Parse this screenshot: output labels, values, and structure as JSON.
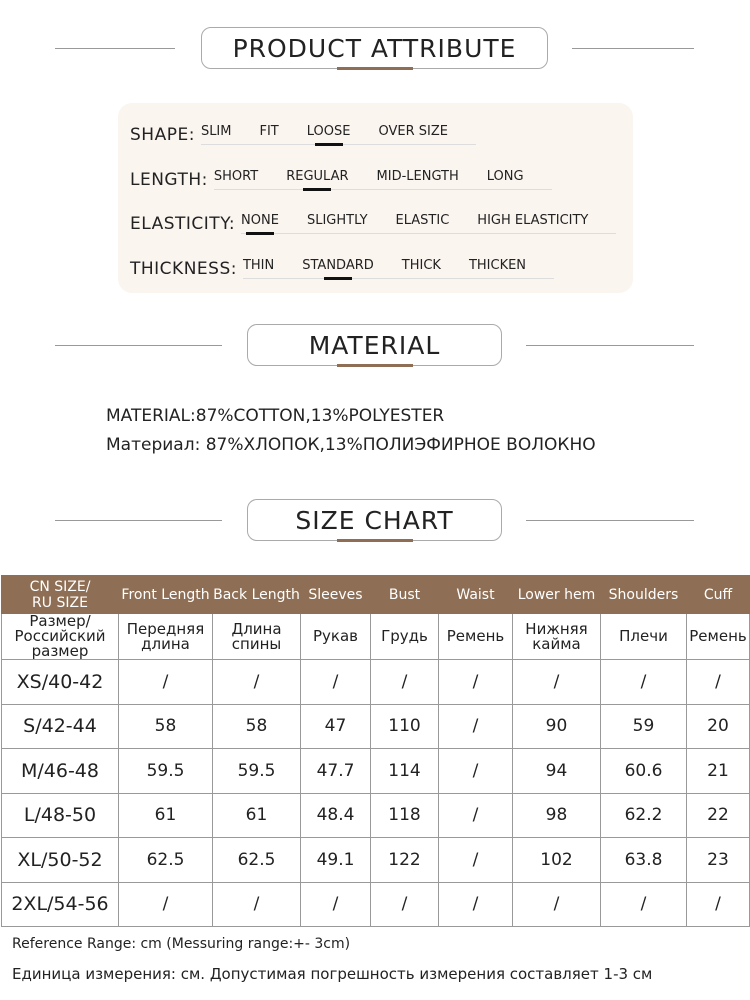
{
  "sections": {
    "attribute": "PRODUCT ATTRIBUTE",
    "material": "MATERIAL",
    "size_chart": "SIZE CHART"
  },
  "accent_color": "#8e6f55",
  "attributes": [
    {
      "label": "SHAPE:",
      "options": [
        "SLIM",
        "FIT",
        "LOOSE",
        "OVER SIZE"
      ],
      "selected": "LOOSE"
    },
    {
      "label": "LENGTH:",
      "options": [
        "SHORT",
        "REGULAR",
        "MID-LENGTH",
        "LONG"
      ],
      "selected": "REGULAR"
    },
    {
      "label": "ELASTICITY:",
      "options": [
        "NONE",
        "SLIGHTLY",
        "ELASTIC",
        "HIGH ELASTICITY"
      ],
      "selected": "NONE"
    },
    {
      "label": "THICKNESS:",
      "options": [
        "THIN",
        "STANDARD",
        "THICK",
        "THICKEN"
      ],
      "selected": "STANDARD"
    }
  ],
  "material": {
    "en": "MATERIAL:87%COTTON,13%POLYESTER",
    "ru": "Материал: 87%ХЛОПОК,13%ПОЛИЭФИРНОЕ ВОЛОКНО"
  },
  "table": {
    "headers_en": [
      "CN SIZE/\nRU SIZE",
      "Front Length",
      "Back Length",
      "Sleeves",
      "Bust",
      "Waist",
      "Lower hem",
      "Shoulders",
      "Cuff"
    ],
    "headers_ru": [
      "Размер/\nРоссийский\nразмер",
      "Передняя\nдлина",
      "Длина\nспины",
      "Рукав",
      "Грудь",
      "Ремень",
      "Нижняя\nкайма",
      "Плечи",
      "Ремень"
    ],
    "rows": [
      [
        "XS/40-42",
        "/",
        "/",
        "/",
        "/",
        "/",
        "/",
        "/",
        "/"
      ],
      [
        "S/42-44",
        "58",
        "58",
        "47",
        "110",
        "/",
        "90",
        "59",
        "20"
      ],
      [
        "M/46-48",
        "59.5",
        "59.5",
        "47.7",
        "114",
        "/",
        "94",
        "60.6",
        "21"
      ],
      [
        "L/48-50",
        "61",
        "61",
        "48.4",
        "118",
        "/",
        "98",
        "62.2",
        "22"
      ],
      [
        "XL/50-52",
        "62.5",
        "62.5",
        "49.1",
        "122",
        "/",
        "102",
        "63.8",
        "23"
      ],
      [
        "2XL/54-56",
        "/",
        "/",
        "/",
        "/",
        "/",
        "/",
        "/",
        "/"
      ]
    ]
  },
  "notes": {
    "en": "Reference Range: cm (Messuring range:+- 3cm)",
    "ru": "Единица измерения: см. Допустимая погрешность измерения составляет 1-3 см"
  }
}
